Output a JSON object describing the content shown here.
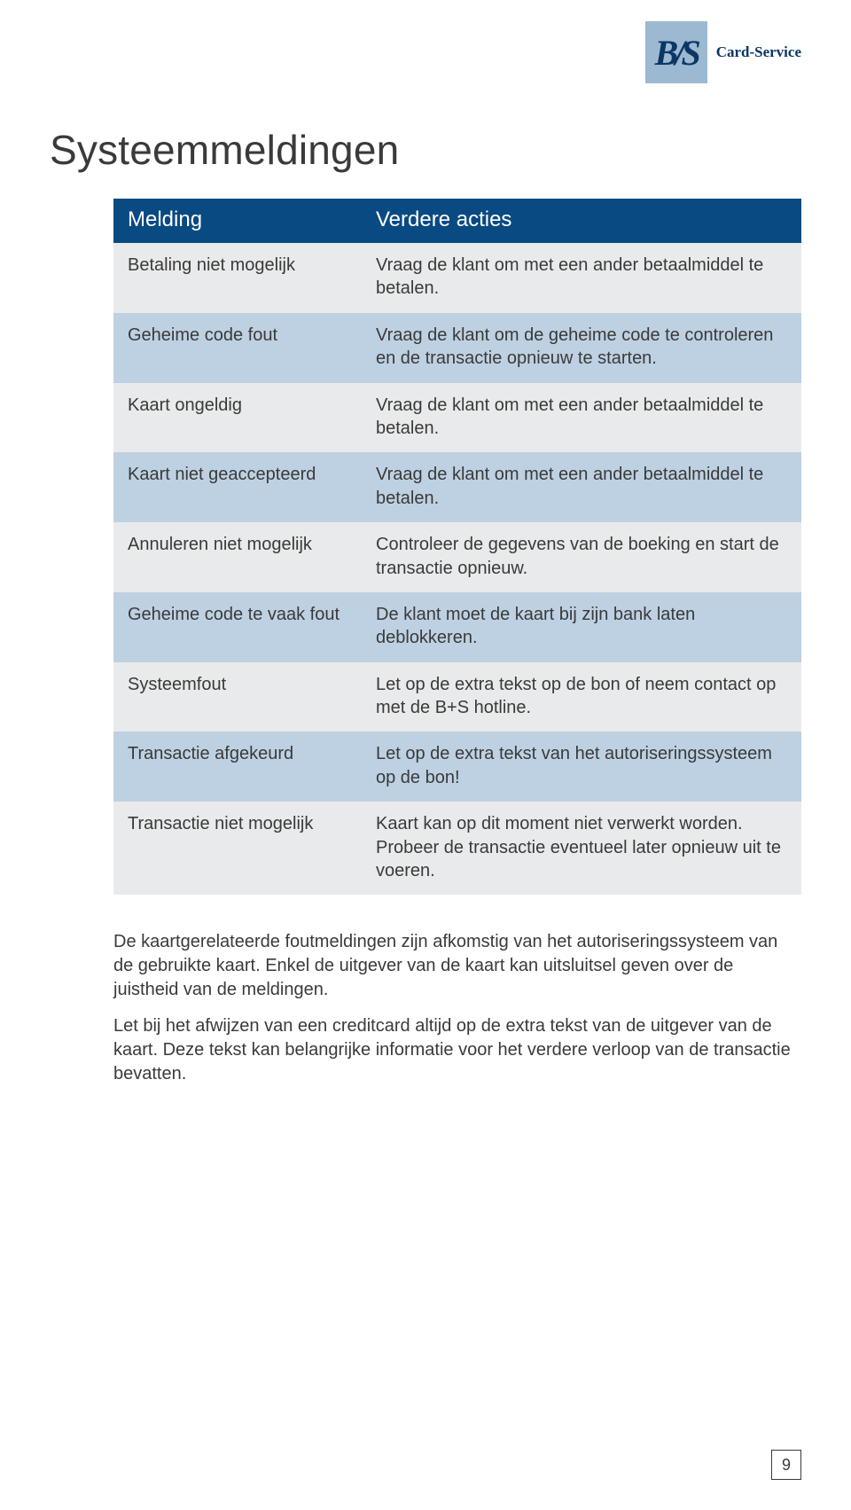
{
  "logo": {
    "mark": "B/S",
    "text": "Card-Service"
  },
  "page_title": "Systeemmeldingen",
  "table": {
    "headers": {
      "col1": "Melding",
      "col2": "Verdere acties"
    },
    "rows": [
      {
        "msg": "Betaling niet mogelijk",
        "action": "Vraag de klant om met een ander betaalmiddel te betalen."
      },
      {
        "msg": "Geheime code fout",
        "action": "Vraag de klant om de geheime code te controleren en de transactie opnieuw te starten."
      },
      {
        "msg": "Kaart ongeldig",
        "action": "Vraag de klant om met een ander betaalmiddel te betalen."
      },
      {
        "msg": "Kaart niet geaccepteerd",
        "action": "Vraag de klant om met een ander betaalmiddel te betalen."
      },
      {
        "msg": "Annuleren niet mogelijk",
        "action": "Controleer de gegevens van de boeking en start de transactie opnieuw."
      },
      {
        "msg": "Geheime code te vaak fout",
        "action": "De klant moet de kaart bij zijn bank laten deblokkeren."
      },
      {
        "msg": "Systeemfout",
        "action": "Let op de extra tekst op de bon of neem contact op met de B+S hotline."
      },
      {
        "msg": "Transactie afgekeurd",
        "action": "Let op de extra tekst van het autoriseringssysteem op de bon!"
      },
      {
        "msg": "Transactie niet mogelijk",
        "action": "Kaart kan op dit moment niet verwerkt worden. Probeer de transactie eventueel later opnieuw uit te voeren."
      }
    ]
  },
  "body_paragraphs": [
    "De kaartgerelateerde foutmeldingen zijn afkomstig van het autoriseringssysteem van de gebruikte kaart. Enkel de uitgever van de kaart kan uitsluitsel geven over de juistheid van de meldingen.",
    "Let bij het afwijzen van een creditcard altijd op de extra tekst van de uitgever van de kaart. Deze tekst kan belangrijke informatie voor het verdere verloop van de transactie bevatten."
  ],
  "page_number": "9",
  "colors": {
    "header_bg": "#0a4a82",
    "row_odd_bg": "#e9eaeb",
    "row_even_bg": "#bed1e2",
    "logo_bg": "#9cb9d1",
    "logo_fg": "#0a3764",
    "text": "#3a3a3a"
  }
}
